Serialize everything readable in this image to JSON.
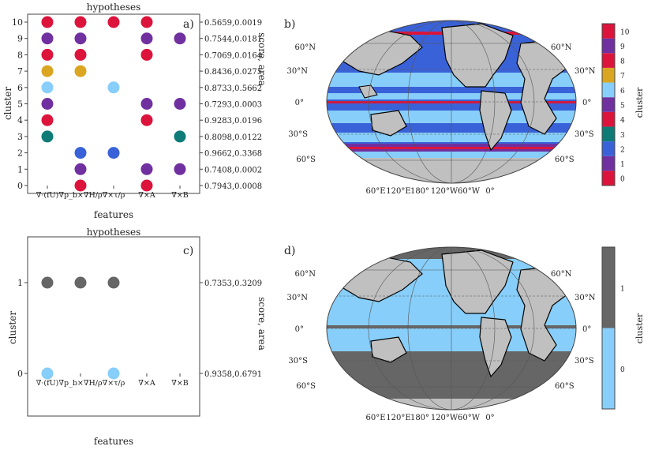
{
  "chart_data": [
    {
      "type": "scatter",
      "panel": "a)",
      "title": "hypotheses",
      "xlabel": "features",
      "ylabel": "cluster",
      "ylabel_right": "score, area",
      "x_ticklabels": [
        "∇·(fU)",
        "∇p_b×∇H/ρ",
        "∇×τ/ρ",
        "∇×A",
        "∇×B"
      ],
      "y_ticks": [
        0,
        1,
        2,
        3,
        4,
        5,
        6,
        7,
        8,
        9,
        10
      ],
      "right_ticklabels": [
        "0.7943,0.0008",
        "0.7408,0.0002",
        "0.9662,0.3368",
        "0.8098,0.0122",
        "0.9283,0.0196",
        "0.7293,0.0003",
        "0.8733,0.5662",
        "0.8436,0.0275",
        "0.7069,0.0164",
        "0.7544,0.0181",
        "0.5659,0.0019"
      ],
      "cluster_colors": [
        "#dc143c",
        "#7030a0",
        "#3a62d8",
        "#0e7b77",
        "#dc143c",
        "#7030a0",
        "#87cefa",
        "#daa520",
        "#dc143c",
        "#7030a0",
        "#dc143c"
      ],
      "points": [
        {
          "cluster": 0,
          "features": [
            2,
            4
          ]
        },
        {
          "cluster": 1,
          "features": [
            2,
            4,
            5
          ]
        },
        {
          "cluster": 2,
          "features": [
            2,
            3
          ]
        },
        {
          "cluster": 3,
          "features": [
            1,
            5
          ]
        },
        {
          "cluster": 4,
          "features": [
            1,
            4
          ]
        },
        {
          "cluster": 5,
          "features": [
            1,
            4,
            5
          ]
        },
        {
          "cluster": 6,
          "features": [
            1,
            3
          ]
        },
        {
          "cluster": 7,
          "features": [
            1,
            2
          ]
        },
        {
          "cluster": 8,
          "features": [
            1,
            2,
            4
          ]
        },
        {
          "cluster": 9,
          "features": [
            1,
            2,
            4,
            5
          ]
        },
        {
          "cluster": 10,
          "features": [
            1,
            2,
            3,
            4
          ]
        }
      ]
    },
    {
      "type": "map",
      "panel": "b)",
      "colorbar_label": "cluster",
      "colorbar_ticks": [
        "0",
        "1",
        "2",
        "3",
        "4",
        "5",
        "6",
        "7",
        "8",
        "9",
        "10"
      ],
      "colorbar_colors": [
        "#dc143c",
        "#7030a0",
        "#3a62d8",
        "#0e7b77",
        "#dc143c",
        "#7030a0",
        "#87cefa",
        "#daa520",
        "#dc143c",
        "#7030a0",
        "#dc143c"
      ],
      "lat_labels": [
        "60°N",
        "30°N",
        "0°",
        "30°S",
        "60°S"
      ],
      "lon_labels": [
        "60°E",
        "120°E",
        "180°",
        "120°W",
        "60°W",
        "0°"
      ]
    },
    {
      "type": "scatter",
      "panel": "c)",
      "title": "hypotheses",
      "xlabel": "features",
      "ylabel": "cluster",
      "ylabel_right": "score, area",
      "x_ticklabels": [
        "∇·(fU)",
        "∇p_b×∇H/ρ",
        "∇×τ/ρ",
        "∇×A",
        "∇×B"
      ],
      "y_ticks": [
        0,
        1
      ],
      "right_ticklabels": [
        "0.9358,0.6791",
        "0.7353,0.3209"
      ],
      "cluster_colors": [
        "#87cefa",
        "#666666"
      ],
      "points": [
        {
          "cluster": 0,
          "features": [
            1,
            3
          ]
        },
        {
          "cluster": 1,
          "features": [
            1,
            2,
            3
          ]
        }
      ]
    },
    {
      "type": "map",
      "panel": "d)",
      "colorbar_label": "cluster",
      "colorbar_ticks": [
        "0",
        "1"
      ],
      "colorbar_colors": [
        "#87cefa",
        "#666666"
      ],
      "lat_labels": [
        "60°N",
        "30°N",
        "0°",
        "30°S",
        "60°S"
      ],
      "lon_labels": [
        "60°E",
        "120°E",
        "180°",
        "120°W",
        "60°W",
        "0°"
      ]
    }
  ]
}
